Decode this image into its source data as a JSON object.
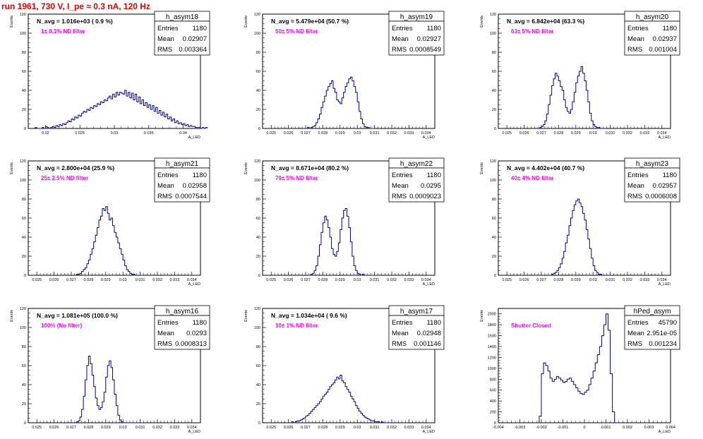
{
  "page": {
    "title": "run 1961,   730 V, I_pe ≈ 0.3 nA, 120 Hz"
  },
  "axis_titles": {
    "y": "Events",
    "x": "A_LED"
  },
  "colors": {
    "hist": "#00008b",
    "annotation": "#ff00ff",
    "title": "#e00000",
    "text": "#000000"
  },
  "chart_data": [
    {
      "type": "histogram",
      "name": "h_asym18",
      "n_avg": "N_avg = 1.016e+03 ( 0.9 %)",
      "filter": "1± 0.1% ND filter",
      "stats": {
        "Entries": "1180",
        "Mean": "0.02907",
        "RMS": "0.003364"
      },
      "xlim": [
        0.0175,
        0.0425
      ],
      "ylim": [
        0,
        120
      ],
      "xticks": [
        0.02,
        0.025,
        0.03,
        0.035,
        0.04
      ],
      "xticklabels": [
        "0.02",
        "0.025",
        "0.03",
        "0.035",
        "0.04"
      ],
      "yticks": [
        0,
        20,
        40,
        60,
        80,
        100,
        120
      ],
      "yticklabels": [
        "0",
        "20",
        "40",
        "60",
        "80",
        "100",
        "120"
      ],
      "bins": {
        "start": 0.0185,
        "width": 0.00025
      },
      "values": [
        1,
        0,
        0,
        0,
        1,
        0,
        2,
        1,
        0,
        1,
        2,
        1,
        3,
        2,
        4,
        3,
        5,
        4,
        6,
        8,
        7,
        10,
        9,
        12,
        11,
        14,
        13,
        16,
        18,
        17,
        20,
        19,
        22,
        21,
        24,
        23,
        26,
        25,
        28,
        27,
        30,
        29,
        32,
        34,
        31,
        36,
        33,
        38,
        35,
        38,
        37,
        36,
        40,
        34,
        38,
        32,
        37,
        30,
        36,
        28,
        33,
        26,
        30,
        24,
        27,
        22,
        25,
        20,
        24,
        18,
        22,
        16,
        19,
        14,
        17,
        12,
        15,
        10,
        12,
        8,
        10,
        6,
        8,
        5,
        6,
        4,
        5,
        3,
        4,
        2,
        3,
        2,
        2,
        1,
        1,
        1,
        0,
        1,
        0,
        1
      ]
    },
    {
      "type": "histogram",
      "name": "h_asym19",
      "n_avg": "N_avg = 5.479e+04 (50.7 %)",
      "filter": "50± 5% ND filter",
      "stats": {
        "Entries": "1180",
        "Mean": "0.02927",
        "RMS": "0.0008549"
      },
      "xlim": [
        0.0245,
        0.0345
      ],
      "ylim": [
        0,
        120
      ],
      "xticks": [
        0.025,
        0.026,
        0.027,
        0.028,
        0.029,
        0.03,
        0.031,
        0.032,
        0.033,
        0.034
      ],
      "xticklabels": [
        "0.025",
        "0.026",
        "0.027",
        "0.028",
        "0.029",
        "0.03",
        "0.031",
        "0.032",
        "0.033",
        "0.034"
      ],
      "yticks": [
        0,
        20,
        40,
        60,
        80,
        100,
        120
      ],
      "yticklabels": [
        "0",
        "20",
        "40",
        "60",
        "80",
        "100",
        "120"
      ],
      "bins": {
        "start": 0.027,
        "width": 0.0001
      },
      "values": [
        0,
        1,
        0,
        1,
        2,
        3,
        6,
        10,
        15,
        22,
        28,
        34,
        40,
        44,
        47,
        50,
        42,
        38,
        30,
        28,
        26,
        32,
        38,
        44,
        48,
        52,
        54,
        50,
        44,
        38,
        28,
        18,
        10,
        5,
        2,
        1,
        1,
        0,
        0,
        0
      ]
    },
    {
      "type": "histogram",
      "name": "h_asym20",
      "n_avg": "N_avg = 6.842e+04 (63.3 %)",
      "filter": "63± 5% ND filter",
      "stats": {
        "Entries": "1180",
        "Mean": "0.02937",
        "RMS": "0.001004"
      },
      "xlim": [
        0.0245,
        0.0345
      ],
      "ylim": [
        0,
        120
      ],
      "xticks": [
        0.025,
        0.026,
        0.027,
        0.028,
        0.029,
        0.03,
        0.031,
        0.032,
        0.033,
        0.034
      ],
      "xticklabels": [
        "0.025",
        "0.026",
        "0.027",
        "0.028",
        "0.029",
        "0.03",
        "0.031",
        "0.032",
        "0.033",
        "0.034"
      ],
      "yticks": [
        0,
        20,
        40,
        60,
        80,
        100,
        120
      ],
      "yticklabels": [
        "0",
        "20",
        "40",
        "60",
        "80",
        "100",
        "120"
      ],
      "bins": {
        "start": 0.0268,
        "width": 0.0001
      },
      "values": [
        0,
        1,
        2,
        4,
        8,
        15,
        25,
        35,
        45,
        52,
        58,
        55,
        50,
        44,
        40,
        30,
        22,
        18,
        16,
        20,
        28,
        38,
        48,
        55,
        60,
        65,
        58,
        50,
        40,
        28,
        16,
        8,
        4,
        2,
        1,
        1,
        0,
        0,
        0,
        0
      ]
    },
    {
      "type": "histogram",
      "name": "h_asym21",
      "n_avg": "N_avg = 2.800e+04 (25.9 %)",
      "filter": "25± 2.5% ND filter",
      "stats": {
        "Entries": "1180",
        "Mean": "0.02958",
        "RMS": "0.0007544"
      },
      "xlim": [
        0.0245,
        0.0345
      ],
      "ylim": [
        0,
        120
      ],
      "xticks": [
        0.025,
        0.026,
        0.027,
        0.028,
        0.029,
        0.03,
        0.031,
        0.032,
        0.033,
        0.034
      ],
      "xticklabels": [
        "0.025",
        "0.026",
        "0.027",
        "0.028",
        "0.029",
        "0.03",
        "0.031",
        "0.032",
        "0.033",
        "0.034"
      ],
      "yticks": [
        0,
        20,
        40,
        60,
        80,
        100,
        120
      ],
      "yticklabels": [
        "0",
        "20",
        "40",
        "60",
        "80",
        "100",
        "120"
      ],
      "bins": {
        "start": 0.0272,
        "width": 0.0001
      },
      "values": [
        0,
        1,
        1,
        2,
        4,
        6,
        8,
        12,
        16,
        22,
        28,
        35,
        42,
        50,
        58,
        62,
        70,
        68,
        72,
        65,
        58,
        60,
        52,
        45,
        40,
        34,
        28,
        22,
        16,
        10,
        6,
        4,
        2,
        1,
        1,
        0,
        0,
        0,
        0,
        0
      ]
    },
    {
      "type": "histogram",
      "name": "h_asym22",
      "n_avg": "N_avg = 8.671e+04 (80.2 %)",
      "filter": "79± 5% ND filter",
      "stats": {
        "Entries": "1180",
        "Mean": "0.0295",
        "RMS": "0.0009023"
      },
      "xlim": [
        0.0245,
        0.0345
      ],
      "ylim": [
        0,
        120
      ],
      "xticks": [
        0.025,
        0.026,
        0.027,
        0.028,
        0.029,
        0.03,
        0.031,
        0.032,
        0.033,
        0.034
      ],
      "xticklabels": [
        "0.025",
        "0.026",
        "0.027",
        "0.028",
        "0.029",
        "0.03",
        "0.031",
        "0.032",
        "0.033",
        "0.034"
      ],
      "yticks": [
        0,
        20,
        40,
        60,
        80,
        100,
        120
      ],
      "yticklabels": [
        "0",
        "20",
        "40",
        "60",
        "80",
        "100",
        "120"
      ],
      "bins": {
        "start": 0.0272,
        "width": 0.0001
      },
      "values": [
        0,
        1,
        2,
        5,
        10,
        20,
        32,
        45,
        55,
        62,
        58,
        50,
        40,
        28,
        22,
        20,
        25,
        34,
        48,
        60,
        68,
        70,
        62,
        50,
        35,
        20,
        10,
        5,
        2,
        1,
        0,
        1,
        0,
        0,
        0,
        0,
        0,
        0,
        0,
        0
      ]
    },
    {
      "type": "histogram",
      "name": "h_asym23",
      "n_avg": "N_avg = 4.402e+04 (40.7 %)",
      "filter": "40± 4% ND filter",
      "stats": {
        "Entries": "1180",
        "Mean": "0.02957",
        "RMS": "0.0006008"
      },
      "xlim": [
        0.0245,
        0.0345
      ],
      "ylim": [
        0,
        120
      ],
      "xticks": [
        0.025,
        0.026,
        0.027,
        0.028,
        0.029,
        0.03,
        0.031,
        0.032,
        0.033,
        0.034
      ],
      "xticklabels": [
        "0.025",
        "0.026",
        "0.027",
        "0.028",
        "0.029",
        "0.03",
        "0.031",
        "0.032",
        "0.033",
        "0.034"
      ],
      "yticks": [
        0,
        20,
        40,
        60,
        80,
        100,
        120
      ],
      "yticklabels": [
        "0",
        "20",
        "40",
        "60",
        "80",
        "100",
        "120"
      ],
      "bins": {
        "start": 0.0275,
        "width": 0.0001
      },
      "values": [
        0,
        1,
        2,
        3,
        5,
        8,
        12,
        18,
        25,
        34,
        42,
        52,
        60,
        68,
        74,
        78,
        80,
        76,
        72,
        65,
        58,
        48,
        38,
        28,
        18,
        10,
        5,
        3,
        1,
        1,
        0,
        0,
        0,
        0,
        0
      ]
    },
    {
      "type": "histogram",
      "name": "h_asym16",
      "n_avg": "N_avg = 1.081e+05 (100.0 %)",
      "filter": "100% (No filter)",
      "stats": {
        "Entries": "1180",
        "Mean": "0.0293",
        "RMS": "0.0008313"
      },
      "xlim": [
        0.0245,
        0.0345
      ],
      "ylim": [
        0,
        120
      ],
      "xticks": [
        0.025,
        0.026,
        0.027,
        0.028,
        0.029,
        0.03,
        0.031,
        0.032,
        0.033,
        0.034
      ],
      "xticklabels": [
        "0.025",
        "0.026",
        "0.027",
        "0.028",
        "0.029",
        "0.03",
        "0.031",
        "0.032",
        "0.033",
        "0.034"
      ],
      "yticks": [
        0,
        20,
        40,
        60,
        80,
        100,
        120
      ],
      "yticklabels": [
        "0",
        "20",
        "40",
        "60",
        "80",
        "100",
        "120"
      ],
      "bins": {
        "start": 0.0272,
        "width": 0.0001
      },
      "values": [
        0,
        1,
        2,
        6,
        14,
        28,
        45,
        60,
        70,
        62,
        50,
        38,
        26,
        18,
        14,
        16,
        22,
        32,
        48,
        60,
        65,
        58,
        45,
        30,
        18,
        8,
        3,
        1,
        0,
        0,
        0,
        0,
        0,
        0,
        0,
        0,
        0,
        0,
        0,
        0
      ]
    },
    {
      "type": "histogram",
      "name": "h_asym17",
      "n_avg": "N_avg = 1.034e+04 ( 9.6 %)",
      "filter": "10± 1% ND filter",
      "stats": {
        "Entries": "1180",
        "Mean": "0.02948",
        "RMS": "0.001146"
      },
      "xlim": [
        0.0245,
        0.0345
      ],
      "ylim": [
        0,
        120
      ],
      "xticks": [
        0.025,
        0.026,
        0.027,
        0.028,
        0.029,
        0.03,
        0.031,
        0.032,
        0.033,
        0.034
      ],
      "xticklabels": [
        "0.025",
        "0.026",
        "0.027",
        "0.028",
        "0.029",
        "0.03",
        "0.031",
        "0.032",
        "0.033",
        "0.034"
      ],
      "yticks": [
        0,
        20,
        40,
        60,
        80,
        100,
        120
      ],
      "yticklabels": [
        "0",
        "20",
        "40",
        "60",
        "80",
        "100",
        "120"
      ],
      "bins": {
        "start": 0.0262,
        "width": 0.0001
      },
      "values": [
        1,
        0,
        1,
        2,
        2,
        3,
        4,
        5,
        7,
        8,
        10,
        12,
        14,
        16,
        18,
        20,
        22,
        25,
        28,
        30,
        32,
        35,
        38,
        40,
        42,
        45,
        48,
        46,
        50,
        44,
        42,
        38,
        35,
        32,
        28,
        25,
        22,
        18,
        15,
        12,
        10,
        8,
        6,
        5,
        4,
        3,
        2,
        2,
        1,
        1,
        1,
        0,
        1,
        0,
        0,
        0,
        0,
        0,
        0,
        0
      ]
    },
    {
      "type": "histogram",
      "name": "hPed_asym",
      "n_avg": "",
      "filter": "Shutter Closed",
      "stats": {
        "Entries": "45790",
        "Mean": "2.951e-05",
        "RMS": "0.001234"
      },
      "xlim": [
        -0.004,
        0.004
      ],
      "ylim": [
        0,
        2100
      ],
      "xticks": [
        -0.004,
        -0.003,
        -0.002,
        -0.001,
        0,
        0.001,
        0.002,
        0.003,
        0.004
      ],
      "xticklabels": [
        "-0.004",
        "-0.003",
        "-0.002",
        "-0.001",
        "0",
        "0.001",
        "0.002",
        "0.003",
        "0.004"
      ],
      "yticks": [
        0,
        200,
        400,
        600,
        800,
        1000,
        1200,
        1400,
        1600,
        1800,
        2000
      ],
      "yticklabels": [
        "0",
        "200",
        "400",
        "600",
        "800",
        "1000",
        "1200",
        "1400",
        "1600",
        "1800",
        "2000"
      ],
      "bins": {
        "start": -0.0022,
        "width": 0.0001
      },
      "values": [
        0,
        120,
        900,
        1100,
        1050,
        950,
        820,
        760,
        800,
        850,
        820,
        780,
        740,
        760,
        800,
        820,
        760,
        700,
        640,
        580,
        540,
        520,
        560,
        600,
        700,
        820,
        950,
        1100,
        1250,
        1400,
        1600,
        1800,
        2000,
        1700,
        900,
        200,
        0,
        0
      ]
    }
  ]
}
